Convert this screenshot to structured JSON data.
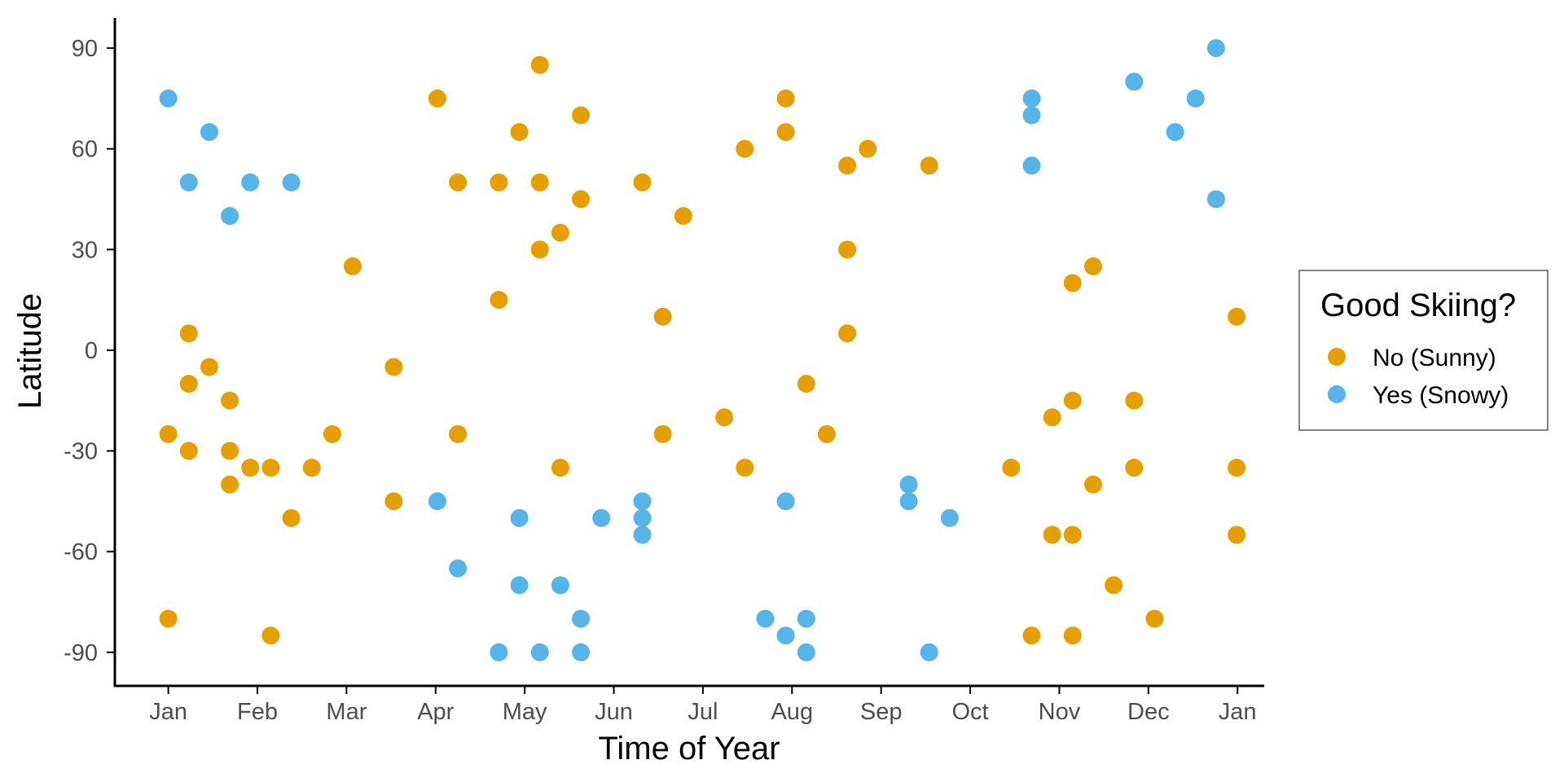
{
  "chart_data": {
    "type": "scatter",
    "title": "",
    "xlabel": "Time of Year",
    "ylabel": "Latitude",
    "x_unit": "month (1 = Jan 1, 13 = next Jan 1)",
    "xlim": [
      0.4,
      13.3
    ],
    "ylim": [
      -100,
      99
    ],
    "x_ticks": [
      {
        "value": 1,
        "label": "Jan"
      },
      {
        "value": 2,
        "label": "Feb"
      },
      {
        "value": 3,
        "label": "Mar"
      },
      {
        "value": 4,
        "label": "Apr"
      },
      {
        "value": 5,
        "label": "May"
      },
      {
        "value": 6,
        "label": "Jun"
      },
      {
        "value": 7,
        "label": "Jul"
      },
      {
        "value": 8,
        "label": "Aug"
      },
      {
        "value": 9,
        "label": "Sep"
      },
      {
        "value": 10,
        "label": "Oct"
      },
      {
        "value": 11,
        "label": "Nov"
      },
      {
        "value": 12,
        "label": "Dec"
      },
      {
        "value": 13,
        "label": "Jan"
      }
    ],
    "y_ticks": [
      {
        "value": 90,
        "label": "90"
      },
      {
        "value": 60,
        "label": "60"
      },
      {
        "value": 30,
        "label": "30"
      },
      {
        "value": 0,
        "label": "0"
      },
      {
        "value": -30,
        "label": "-30"
      },
      {
        "value": -60,
        "label": "-60"
      },
      {
        "value": -90,
        "label": "-90"
      }
    ],
    "grid": false,
    "legend": {
      "title": "Good Skiing?",
      "position": "right"
    },
    "series": [
      {
        "name": "No (Sunny)",
        "color": "#E69F00",
        "points": [
          {
            "x": 1.0,
            "y": -25
          },
          {
            "x": 1.0,
            "y": -80
          },
          {
            "x": 1.23,
            "y": 5
          },
          {
            "x": 1.23,
            "y": -10
          },
          {
            "x": 1.23,
            "y": -30
          },
          {
            "x": 1.46,
            "y": -5
          },
          {
            "x": 1.69,
            "y": -15
          },
          {
            "x": 1.69,
            "y": -30
          },
          {
            "x": 1.69,
            "y": -40
          },
          {
            "x": 1.92,
            "y": -35
          },
          {
            "x": 2.15,
            "y": -35
          },
          {
            "x": 2.15,
            "y": -85
          },
          {
            "x": 2.38,
            "y": -50
          },
          {
            "x": 2.61,
            "y": -35
          },
          {
            "x": 2.84,
            "y": -25
          },
          {
            "x": 3.07,
            "y": 25
          },
          {
            "x": 3.53,
            "y": -5
          },
          {
            "x": 3.53,
            "y": -45
          },
          {
            "x": 4.02,
            "y": 75
          },
          {
            "x": 4.25,
            "y": 50
          },
          {
            "x": 4.25,
            "y": -25
          },
          {
            "x": 4.71,
            "y": 50
          },
          {
            "x": 4.71,
            "y": 15
          },
          {
            "x": 4.94,
            "y": 65
          },
          {
            "x": 5.17,
            "y": 85
          },
          {
            "x": 5.17,
            "y": 50
          },
          {
            "x": 5.17,
            "y": 30
          },
          {
            "x": 5.4,
            "y": 35
          },
          {
            "x": 5.4,
            "y": -35
          },
          {
            "x": 5.63,
            "y": 70
          },
          {
            "x": 5.63,
            "y": 45
          },
          {
            "x": 6.32,
            "y": 50
          },
          {
            "x": 6.55,
            "y": 10
          },
          {
            "x": 6.55,
            "y": -25
          },
          {
            "x": 6.78,
            "y": 40
          },
          {
            "x": 7.24,
            "y": -20
          },
          {
            "x": 7.47,
            "y": 60
          },
          {
            "x": 7.47,
            "y": -35
          },
          {
            "x": 7.93,
            "y": 75
          },
          {
            "x": 7.93,
            "y": 65
          },
          {
            "x": 8.16,
            "y": -10
          },
          {
            "x": 8.39,
            "y": -25
          },
          {
            "x": 8.62,
            "y": 55
          },
          {
            "x": 8.62,
            "y": 30
          },
          {
            "x": 8.62,
            "y": 5
          },
          {
            "x": 8.85,
            "y": 60
          },
          {
            "x": 9.54,
            "y": 55
          },
          {
            "x": 10.46,
            "y": -35
          },
          {
            "x": 10.69,
            "y": -85
          },
          {
            "x": 10.92,
            "y": -20
          },
          {
            "x": 10.92,
            "y": -55
          },
          {
            "x": 11.15,
            "y": 20
          },
          {
            "x": 11.15,
            "y": -15
          },
          {
            "x": 11.15,
            "y": -55
          },
          {
            "x": 11.15,
            "y": -85
          },
          {
            "x": 11.38,
            "y": 25
          },
          {
            "x": 11.38,
            "y": -40
          },
          {
            "x": 11.61,
            "y": -70
          },
          {
            "x": 11.84,
            "y": -15
          },
          {
            "x": 11.84,
            "y": -35
          },
          {
            "x": 12.07,
            "y": -80
          },
          {
            "x": 12.99,
            "y": 10
          },
          {
            "x": 12.99,
            "y": -35
          },
          {
            "x": 12.99,
            "y": -55
          }
        ]
      },
      {
        "name": "Yes (Snowy)",
        "color": "#56B4E9",
        "points": [
          {
            "x": 1.0,
            "y": 75
          },
          {
            "x": 1.23,
            "y": 50
          },
          {
            "x": 1.46,
            "y": 65
          },
          {
            "x": 1.69,
            "y": 40
          },
          {
            "x": 1.92,
            "y": 50
          },
          {
            "x": 2.38,
            "y": 50
          },
          {
            "x": 4.02,
            "y": -45
          },
          {
            "x": 4.25,
            "y": -65
          },
          {
            "x": 4.71,
            "y": -90
          },
          {
            "x": 4.94,
            "y": -50
          },
          {
            "x": 4.94,
            "y": -70
          },
          {
            "x": 5.17,
            "y": -90
          },
          {
            "x": 5.4,
            "y": -70
          },
          {
            "x": 5.63,
            "y": -80
          },
          {
            "x": 5.63,
            "y": -90
          },
          {
            "x": 5.86,
            "y": -50
          },
          {
            "x": 6.32,
            "y": -45
          },
          {
            "x": 6.32,
            "y": -50
          },
          {
            "x": 6.32,
            "y": -55
          },
          {
            "x": 7.7,
            "y": -80
          },
          {
            "x": 7.93,
            "y": -45
          },
          {
            "x": 7.93,
            "y": -85
          },
          {
            "x": 8.16,
            "y": -80
          },
          {
            "x": 8.16,
            "y": -90
          },
          {
            "x": 9.31,
            "y": -40
          },
          {
            "x": 9.31,
            "y": -45
          },
          {
            "x": 9.54,
            "y": -90
          },
          {
            "x": 9.77,
            "y": -50
          },
          {
            "x": 10.69,
            "y": 75
          },
          {
            "x": 10.69,
            "y": 70
          },
          {
            "x": 10.69,
            "y": 55
          },
          {
            "x": 11.84,
            "y": 80
          },
          {
            "x": 12.3,
            "y": 65
          },
          {
            "x": 12.53,
            "y": 75
          },
          {
            "x": 12.76,
            "y": 90
          },
          {
            "x": 12.76,
            "y": 45
          }
        ]
      }
    ]
  }
}
